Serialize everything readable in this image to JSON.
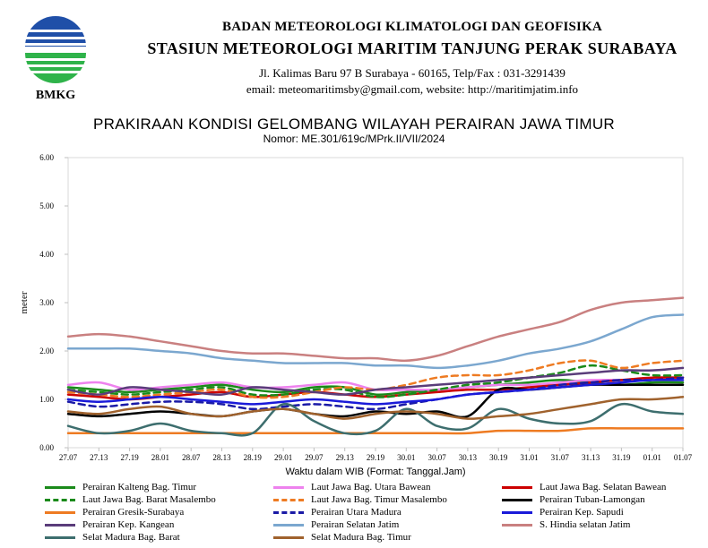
{
  "header": {
    "logo_text": "BMKG",
    "org": "BADAN METEOROLOGI KLIMATOLOGI DAN GEOFISIKA",
    "station": "STASIUN METEOROLOGI MARITIM TANJUNG PERAK SURABAYA",
    "address": "Jl. Kalimas Baru 97 B Surabaya - 60165, Telp/Fax : 031-3291439",
    "contact": "email: meteomaritimsby@gmail.com, website: http://maritimjatim.info"
  },
  "chart_data": {
    "type": "line",
    "title": "PRAKIRAAN KONDISI GELOMBANG WILAYAH PERAIRAN JAWA TIMUR",
    "subtitle": "Nomor: ME.301/619c/MPrk.II/VII/2024",
    "xlabel": "Waktu dalam WIB (Format: Tanggal.Jam)",
    "ylabel": "meter",
    "ylim": [
      0,
      6
    ],
    "yticks": [
      "0.00",
      "1.00",
      "2.00",
      "3.00",
      "4.00",
      "5.00",
      "6.00"
    ],
    "grid": "none",
    "legend_position": "bottom",
    "x": [
      "27.07",
      "27.13",
      "27.19",
      "28.01",
      "28.07",
      "28.13",
      "28.19",
      "29.01",
      "29.07",
      "29.13",
      "29.19",
      "30.01",
      "30.07",
      "30.13",
      "30.19",
      "31.01",
      "31.07",
      "31.13",
      "31.19",
      "01.01",
      "01.07"
    ],
    "series": [
      {
        "name": "Perairan Kalteng Bag. Timur",
        "color": "#1a8a1a",
        "dash": "solid",
        "values": [
          1.25,
          1.2,
          1.15,
          1.2,
          1.25,
          1.3,
          1.2,
          1.15,
          1.25,
          1.25,
          1.1,
          1.15,
          1.2,
          1.25,
          1.3,
          1.35,
          1.4,
          1.35,
          1.3,
          1.35,
          1.35
        ]
      },
      {
        "name": "Laut Jawa Bag. Utara Bawean",
        "color": "#ee82ee",
        "dash": "solid",
        "values": [
          1.3,
          1.35,
          1.2,
          1.25,
          1.3,
          1.35,
          1.25,
          1.25,
          1.3,
          1.35,
          1.2,
          1.2,
          1.2,
          1.25,
          1.3,
          1.3,
          1.35,
          1.4,
          1.4,
          1.4,
          1.45
        ]
      },
      {
        "name": "Laut Jawa Bag. Selatan Bawean",
        "color": "#cc0000",
        "dash": "solid",
        "values": [
          1.1,
          1.05,
          1.0,
          1.05,
          1.1,
          1.15,
          1.05,
          1.1,
          1.15,
          1.1,
          1.05,
          1.1,
          1.15,
          1.2,
          1.2,
          1.25,
          1.3,
          1.35,
          1.4,
          1.45,
          1.45
        ]
      },
      {
        "name": "Laut Jawa Bag. Barat Masalembo",
        "color": "#1a8a1a",
        "dash": "dashed",
        "values": [
          1.2,
          1.15,
          1.1,
          1.15,
          1.2,
          1.25,
          1.1,
          1.1,
          1.2,
          1.2,
          1.05,
          1.1,
          1.2,
          1.3,
          1.35,
          1.45,
          1.55,
          1.7,
          1.6,
          1.5,
          1.5
        ]
      },
      {
        "name": "Laut Jawa Bag. Timur Masalembo",
        "color": "#ee7b22",
        "dash": "dashed",
        "values": [
          1.15,
          1.1,
          1.05,
          1.1,
          1.15,
          1.2,
          1.05,
          1.05,
          1.15,
          1.25,
          1.2,
          1.3,
          1.45,
          1.5,
          1.5,
          1.6,
          1.75,
          1.8,
          1.65,
          1.75,
          1.8
        ]
      },
      {
        "name": "Perairan Tuban-Lamongan",
        "color": "#000000",
        "dash": "solid",
        "values": [
          0.7,
          0.65,
          0.7,
          0.75,
          0.7,
          0.65,
          0.75,
          0.8,
          0.7,
          0.65,
          0.75,
          0.7,
          0.75,
          0.65,
          1.2,
          1.2,
          1.25,
          1.3,
          1.3,
          1.3,
          1.3
        ]
      },
      {
        "name": "Perairan Gresik-Surabaya",
        "color": "#ee7b22",
        "dash": "solid",
        "values": [
          0.3,
          0.3,
          0.3,
          0.3,
          0.3,
          0.3,
          0.3,
          0.3,
          0.3,
          0.3,
          0.3,
          0.3,
          0.3,
          0.3,
          0.35,
          0.35,
          0.35,
          0.4,
          0.4,
          0.4,
          0.4
        ]
      },
      {
        "name": "Perairan Utara Madura",
        "color": "#1a1aa6",
        "dash": "dashed",
        "values": [
          0.95,
          0.85,
          0.9,
          0.95,
          0.95,
          0.9,
          0.8,
          0.85,
          0.9,
          0.85,
          0.8,
          0.9,
          1.0,
          1.1,
          1.15,
          1.2,
          1.3,
          1.35,
          1.4,
          1.4,
          1.45
        ]
      },
      {
        "name": "Perairan Kep. Sapudi",
        "color": "#1a1ad9",
        "dash": "solid",
        "values": [
          1.0,
          0.95,
          1.0,
          1.05,
          1.0,
          0.95,
          0.9,
          0.95,
          1.0,
          0.95,
          0.9,
          0.95,
          1.0,
          1.1,
          1.15,
          1.2,
          1.25,
          1.3,
          1.35,
          1.4,
          1.4
        ]
      },
      {
        "name": "Perairan Kep. Kangean",
        "color": "#5a3c7a",
        "dash": "solid",
        "values": [
          1.2,
          1.1,
          1.25,
          1.2,
          1.15,
          1.1,
          1.25,
          1.2,
          1.15,
          1.1,
          1.2,
          1.25,
          1.3,
          1.35,
          1.4,
          1.45,
          1.5,
          1.55,
          1.6,
          1.6,
          1.65
        ]
      },
      {
        "name": "Perairan Selatan Jatim",
        "color": "#7ba7cf",
        "dash": "solid",
        "values": [
          2.05,
          2.05,
          2.05,
          2.0,
          1.95,
          1.85,
          1.8,
          1.75,
          1.75,
          1.75,
          1.7,
          1.7,
          1.65,
          1.7,
          1.8,
          1.95,
          2.05,
          2.2,
          2.45,
          2.7,
          2.75
        ]
      },
      {
        "name": "S. Hindia selatan Jatim",
        "color": "#c98080",
        "dash": "solid",
        "values": [
          2.3,
          2.35,
          2.3,
          2.2,
          2.1,
          2.0,
          1.95,
          1.95,
          1.9,
          1.85,
          1.85,
          1.8,
          1.9,
          2.1,
          2.3,
          2.45,
          2.6,
          2.85,
          3.0,
          3.05,
          3.1
        ]
      },
      {
        "name": "Selat Madura Bag. Barat",
        "color": "#3d6e6e",
        "dash": "solid",
        "values": [
          0.45,
          0.3,
          0.35,
          0.5,
          0.35,
          0.3,
          0.3,
          0.9,
          0.55,
          0.3,
          0.35,
          0.8,
          0.45,
          0.4,
          0.8,
          0.6,
          0.5,
          0.55,
          0.9,
          0.75,
          0.7
        ]
      },
      {
        "name": "Selat Madura Bag. Timur",
        "color": "#a0622d",
        "dash": "solid",
        "values": [
          0.75,
          0.7,
          0.8,
          0.85,
          0.7,
          0.65,
          0.75,
          0.8,
          0.7,
          0.6,
          0.7,
          0.75,
          0.7,
          0.6,
          0.65,
          0.7,
          0.8,
          0.9,
          1.0,
          1.0,
          1.05
        ]
      }
    ]
  }
}
